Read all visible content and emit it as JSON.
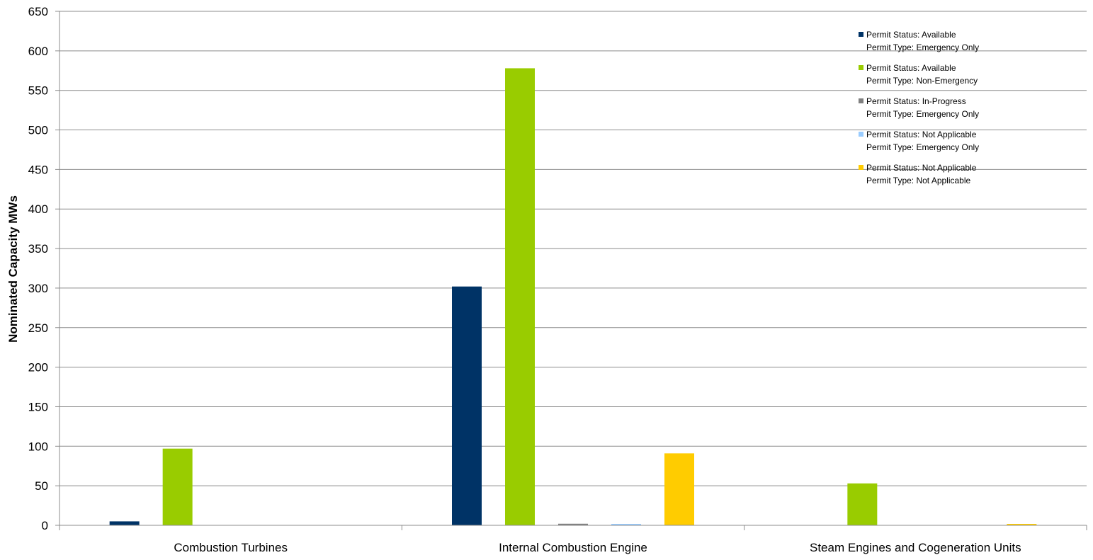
{
  "chart_data": {
    "type": "bar",
    "title": "",
    "xlabel": "",
    "ylabel": "Nominated Capacity MWs",
    "ylim": [
      0,
      650
    ],
    "yticks": [
      "0",
      "50",
      "100",
      "150",
      "200",
      "250",
      "300",
      "350",
      "400",
      "450",
      "500",
      "550",
      "600",
      "650"
    ],
    "grid": true,
    "legend_position": "top-right",
    "categories": [
      "Combustion Turbines",
      "Internal Combustion Engine",
      "Steam Engines and Cogeneration Units"
    ],
    "series": [
      {
        "legend_line1": "Permit Status: Available",
        "legend_line2": "Permit Type: Emergency Only",
        "color": "#003366",
        "values": [
          5,
          302,
          0
        ]
      },
      {
        "legend_line1": "Permit Status: Available",
        "legend_line2": "Permit Type: Non-Emergency",
        "color": "#99CC00",
        "values": [
          97,
          578,
          53
        ]
      },
      {
        "legend_line1": "Permit Status: In-Progress",
        "legend_line2": "Permit Type: Emergency Only",
        "color": "#808080",
        "values": [
          0,
          2,
          0
        ]
      },
      {
        "legend_line1": "Permit Status: Not Applicable",
        "legend_line2": "Permit Type: Emergency Only",
        "color": "#99CCFF",
        "values": [
          0,
          1,
          0
        ]
      },
      {
        "legend_line1": "Permit Status: Not Applicable",
        "legend_line2": "Permit Type: Not Applicable",
        "color": "#FFCC00",
        "values": [
          0,
          91,
          1
        ]
      }
    ]
  }
}
